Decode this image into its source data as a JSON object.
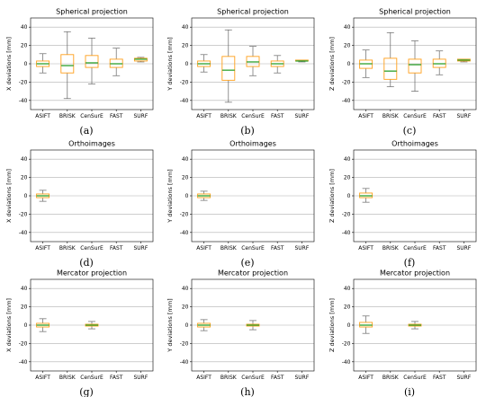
{
  "figure": {
    "ylabels": {
      "x": "X deviations [mm]",
      "y": "Y deviations [mm]",
      "z": "Z deviations [mm]"
    },
    "captions": [
      "(a)",
      "(b)",
      "(c)",
      "(d)",
      "(e)",
      "(f)",
      "(g)",
      "(h)",
      "(i)"
    ],
    "colors": {
      "box": "#ff9f1a",
      "median": "#2ca02c",
      "whisker": "#666666",
      "grid": "#b0b0b0"
    }
  },
  "chart_data": [
    {
      "type": "box",
      "title": "Spherical projection",
      "ylabel": "X deviations [mm]",
      "caption": "(a)",
      "categories": [
        "ASIFT",
        "BRISK",
        "CenSurE",
        "FAST",
        "SURF"
      ],
      "yticks": [
        -40,
        -20,
        0,
        20,
        40
      ],
      "ylim": [
        -50,
        50
      ],
      "grid": "horizontal",
      "boxes": [
        {
          "label": "ASIFT",
          "whislo": -10,
          "q1": -3,
          "med": 0,
          "q3": 3,
          "whishi": 11
        },
        {
          "label": "BRISK",
          "whislo": -38,
          "q1": -10,
          "med": -2,
          "q3": 10,
          "whishi": 35
        },
        {
          "label": "CenSurE",
          "whislo": -22,
          "q1": -4,
          "med": 1,
          "q3": 9,
          "whishi": 28
        },
        {
          "label": "FAST",
          "whislo": -13,
          "q1": -4,
          "med": 0,
          "q3": 5,
          "whishi": 17
        },
        {
          "label": "SURF",
          "whislo": 2,
          "q1": 3,
          "med": 5,
          "q3": 6,
          "whishi": 7
        }
      ]
    },
    {
      "type": "box",
      "title": "Spherical projection",
      "ylabel": "Y deviations [mm]",
      "caption": "(b)",
      "categories": [
        "ASIFT",
        "BRISK",
        "CenSurE",
        "FAST",
        "SURF"
      ],
      "yticks": [
        -40,
        -20,
        0,
        20,
        40
      ],
      "ylim": [
        -50,
        50
      ],
      "grid": "horizontal",
      "boxes": [
        {
          "label": "ASIFT",
          "whislo": -9,
          "q1": -3,
          "med": 0,
          "q3": 3,
          "whishi": 10
        },
        {
          "label": "BRISK",
          "whislo": -42,
          "q1": -18,
          "med": -7,
          "q3": 8,
          "whishi": 37
        },
        {
          "label": "CenSurE",
          "whislo": -13,
          "q1": -3,
          "med": 2,
          "q3": 8,
          "whishi": 19
        },
        {
          "label": "FAST",
          "whislo": -10,
          "q1": -3,
          "med": 0,
          "q3": 3,
          "whishi": 9
        },
        {
          "label": "SURF",
          "whislo": 2,
          "q1": 3,
          "med": 3,
          "q3": 4,
          "whishi": 4
        }
      ]
    },
    {
      "type": "box",
      "title": "Spherical projection",
      "ylabel": "Z deviations [mm]",
      "caption": "(c)",
      "categories": [
        "ASIFT",
        "BRISK",
        "CenSurE",
        "FAST",
        "SURF"
      ],
      "yticks": [
        -40,
        -20,
        0,
        20,
        40
      ],
      "ylim": [
        -50,
        50
      ],
      "grid": "horizontal",
      "boxes": [
        {
          "label": "ASIFT",
          "whislo": -15,
          "q1": -5,
          "med": 0,
          "q3": 4,
          "whishi": 15
        },
        {
          "label": "BRISK",
          "whislo": -25,
          "q1": -17,
          "med": -8,
          "q3": 6,
          "whishi": 34
        },
        {
          "label": "CenSurE",
          "whislo": -30,
          "q1": -10,
          "med": -1,
          "q3": 5,
          "whishi": 25
        },
        {
          "label": "FAST",
          "whislo": -12,
          "q1": -4,
          "med": 0,
          "q3": 5,
          "whishi": 14
        },
        {
          "label": "SURF",
          "whislo": 2,
          "q1": 3,
          "med": 4,
          "q3": 5,
          "whishi": 5
        }
      ]
    },
    {
      "type": "box",
      "title": "Orthoimages",
      "ylabel": "X deviations [mm]",
      "caption": "(d)",
      "categories": [
        "ASIFT",
        "BRISK",
        "CenSurE",
        "FAST",
        "SURF"
      ],
      "yticks": [
        -40,
        -20,
        0,
        20,
        40
      ],
      "ylim": [
        -50,
        50
      ],
      "grid": "horizontal",
      "boxes": [
        {
          "label": "ASIFT",
          "whislo": -6,
          "q1": -2,
          "med": 0,
          "q3": 2,
          "whishi": 6
        }
      ]
    },
    {
      "type": "box",
      "title": "Orthoimages",
      "ylabel": "Y deviations [mm]",
      "caption": "(e)",
      "categories": [
        "ASIFT",
        "BRISK",
        "CenSurE",
        "FAST",
        "SURF"
      ],
      "yticks": [
        -40,
        -20,
        0,
        20,
        40
      ],
      "ylim": [
        -50,
        50
      ],
      "grid": "horizontal",
      "boxes": [
        {
          "label": "ASIFT",
          "whislo": -5,
          "q1": -2,
          "med": 0,
          "q3": 2,
          "whishi": 5
        }
      ]
    },
    {
      "type": "box",
      "title": "Orthoimages",
      "ylabel": "Z deviations [mm]",
      "caption": "(f)",
      "categories": [
        "ASIFT",
        "BRISK",
        "CenSurE",
        "FAST",
        "SURF"
      ],
      "yticks": [
        -40,
        -20,
        0,
        20,
        40
      ],
      "ylim": [
        -50,
        50
      ],
      "grid": "horizontal",
      "boxes": [
        {
          "label": "ASIFT",
          "whislo": -7,
          "q1": -2,
          "med": 0,
          "q3": 3,
          "whishi": 8
        }
      ]
    },
    {
      "type": "box",
      "title": "Mercator projection",
      "ylabel": "X deviations [mm]",
      "caption": "(g)",
      "categories": [
        "ASIFT",
        "BRISK",
        "CenSurE",
        "FAST",
        "SURF"
      ],
      "yticks": [
        -40,
        -20,
        0,
        20,
        40
      ],
      "ylim": [
        -50,
        50
      ],
      "grid": "horizontal",
      "boxes": [
        {
          "label": "ASIFT",
          "whislo": -7,
          "q1": -2,
          "med": 0,
          "q3": 2,
          "whishi": 7
        },
        {
          "label": "CenSurE",
          "whislo": -4,
          "q1": -1,
          "med": 0,
          "q3": 1,
          "whishi": 4
        }
      ]
    },
    {
      "type": "box",
      "title": "Mercator projection",
      "ylabel": "Y deviations [mm]",
      "caption": "(h)",
      "categories": [
        "ASIFT",
        "BRISK",
        "CenSurE",
        "FAST",
        "SURF"
      ],
      "yticks": [
        -40,
        -20,
        0,
        20,
        40
      ],
      "ylim": [
        -50,
        50
      ],
      "grid": "horizontal",
      "boxes": [
        {
          "label": "ASIFT",
          "whislo": -6,
          "q1": -2,
          "med": 0,
          "q3": 2,
          "whishi": 6
        },
        {
          "label": "CenSurE",
          "whislo": -5,
          "q1": -1,
          "med": 0,
          "q3": 1,
          "whishi": 5
        }
      ]
    },
    {
      "type": "box",
      "title": "Mercator projection",
      "ylabel": "Z deviations [mm]",
      "caption": "(i)",
      "categories": [
        "ASIFT",
        "BRISK",
        "CenSurE",
        "FAST",
        "SURF"
      ],
      "yticks": [
        -40,
        -20,
        0,
        20,
        40
      ],
      "ylim": [
        -50,
        50
      ],
      "grid": "horizontal",
      "boxes": [
        {
          "label": "ASIFT",
          "whislo": -9,
          "q1": -2,
          "med": 0,
          "q3": 3,
          "whishi": 10
        },
        {
          "label": "CenSurE",
          "whislo": -4,
          "q1": -1,
          "med": 0,
          "q3": 1,
          "whishi": 4
        }
      ]
    }
  ]
}
